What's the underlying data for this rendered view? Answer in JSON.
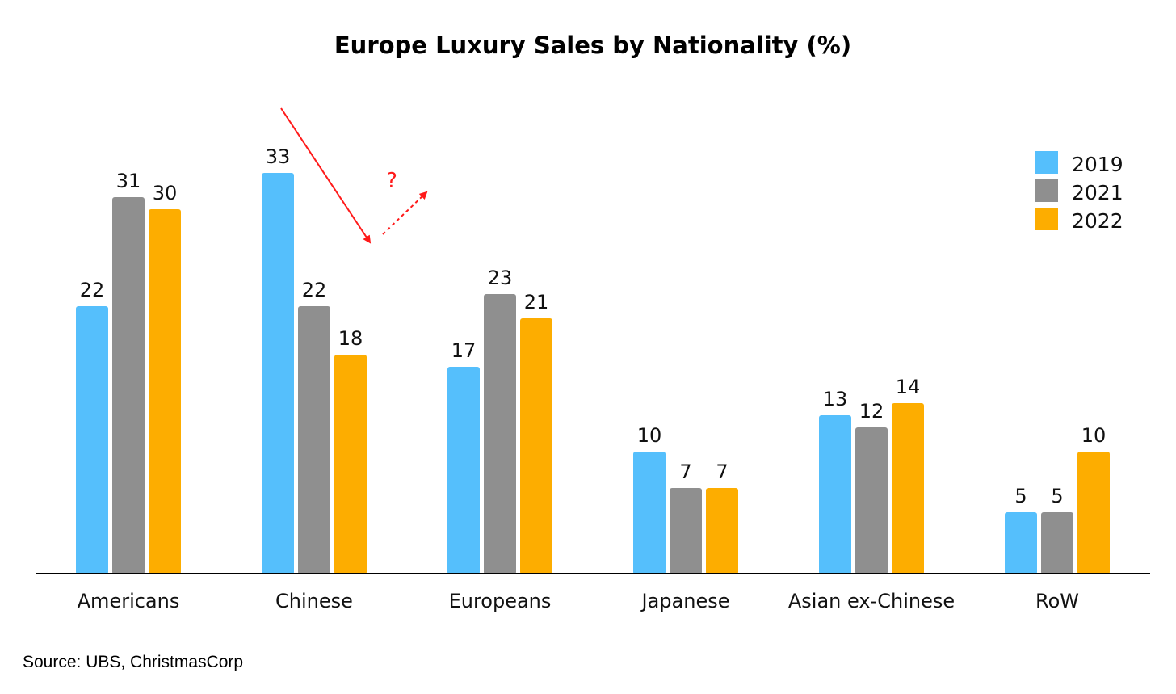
{
  "chart_data": {
    "type": "bar",
    "title": "Europe Luxury Sales by Nationality (%)",
    "xlabel": "",
    "ylabel": "",
    "ylim": [
      0,
      33
    ],
    "grid": false,
    "legend_position": "top-right",
    "categories": [
      "Americans",
      "Chinese",
      "Europeans",
      "Japanese",
      "Asian ex-Chinese",
      "RoW"
    ],
    "series": [
      {
        "name": "2019",
        "color": "#55bffc",
        "values": [
          22,
          33,
          17,
          10,
          13,
          5
        ]
      },
      {
        "name": "2021",
        "color": "#8f8f8f",
        "values": [
          31,
          22,
          23,
          7,
          12,
          5
        ]
      },
      {
        "name": "2022",
        "color": "#fdad00",
        "values": [
          30,
          18,
          21,
          7,
          14,
          10
        ]
      }
    ],
    "annotations": [
      {
        "text": "?",
        "color": "#ff1a1a"
      }
    ]
  },
  "footer": {
    "source": "Source: UBS, ChristmasCorp"
  }
}
